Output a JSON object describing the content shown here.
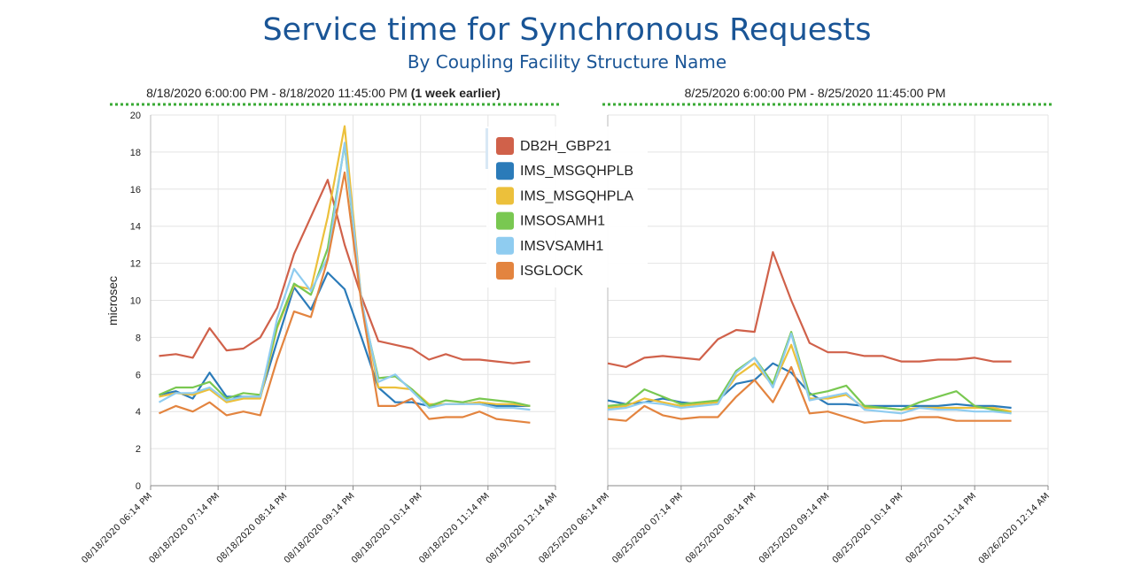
{
  "title": "Service time for Synchronous Requests",
  "subtitle": "By Coupling Facility Structure Name",
  "chart_data": {
    "type": "line",
    "ylabel": "microsec",
    "ylim": [
      0,
      20
    ],
    "yticks": [
      0,
      2,
      4,
      6,
      8,
      10,
      12,
      14,
      16,
      18,
      20
    ],
    "grid": true,
    "legend_placement": "top-center",
    "series_styles": [
      {
        "name": "DB2H_GBP21",
        "color": "#d0614a"
      },
      {
        "name": "IMS_MSGQHPLB",
        "color": "#2b7bb9"
      },
      {
        "name": "IMS_MSGQHPLA",
        "color": "#ecc03b"
      },
      {
        "name": "IMSOSAMH1",
        "color": "#79c851"
      },
      {
        "name": "IMSVSAMH1",
        "color": "#8fccf0"
      },
      {
        "name": "ISGLOCK",
        "color": "#e3843f"
      }
    ],
    "panels": [
      {
        "header": "8/18/2020 6:00:00 PM - 8/18/2020 11:45:00 PM",
        "header_suffix": "(1 week earlier)",
        "xticks": [
          "08/18/2020 06:14 PM",
          "08/18/2020 07:14 PM",
          "08/18/2020 08:14 PM",
          "08/18/2020 09:14 PM",
          "08/18/2020 10:14 PM",
          "08/18/2020 11:14 PM",
          "08/19/2020 12:14 AM"
        ],
        "series": [
          {
            "name": "DB2H_GBP21",
            "values": [
              7.0,
              7.1,
              6.9,
              8.5,
              7.3,
              7.4,
              8.0,
              9.6,
              12.5,
              14.5,
              16.5,
              13.0,
              10.2,
              7.8,
              7.6,
              7.4,
              6.8,
              7.1,
              6.8,
              6.8,
              6.7,
              6.6,
              6.7
            ]
          },
          {
            "name": "IMS_MSGQHPLB",
            "values": [
              4.9,
              5.1,
              4.7,
              6.1,
              4.8,
              4.8,
              4.8,
              7.8,
              10.7,
              9.5,
              11.5,
              10.6,
              8.0,
              5.3,
              4.5,
              4.5,
              4.3,
              4.4,
              4.4,
              4.5,
              4.3,
              4.3,
              4.3
            ]
          },
          {
            "name": "IMS_MSGQHPLA",
            "values": [
              4.8,
              5.0,
              4.9,
              5.2,
              4.5,
              4.7,
              4.7,
              8.5,
              10.8,
              10.6,
              14.5,
              19.4,
              10.0,
              5.3,
              5.3,
              5.2,
              4.4,
              4.4,
              4.4,
              4.5,
              4.4,
              4.4,
              4.3
            ]
          },
          {
            "name": "IMSOSAMH1",
            "values": [
              4.9,
              5.3,
              5.3,
              5.6,
              4.7,
              5.0,
              4.9,
              8.6,
              10.9,
              10.3,
              12.8,
              18.4,
              9.8,
              5.8,
              5.9,
              5.2,
              4.3,
              4.6,
              4.5,
              4.7,
              4.6,
              4.5,
              4.3
            ]
          },
          {
            "name": "IMSVSAMH1",
            "values": [
              4.5,
              5.0,
              5.0,
              5.3,
              4.6,
              4.8,
              4.8,
              9.0,
              11.7,
              10.5,
              12.3,
              18.5,
              10.0,
              5.6,
              6.0,
              5.1,
              4.2,
              4.4,
              4.4,
              4.4,
              4.2,
              4.2,
              4.1
            ]
          },
          {
            "name": "ISGLOCK",
            "values": [
              3.9,
              4.3,
              4.0,
              4.5,
              3.8,
              4.0,
              3.8,
              6.8,
              9.4,
              9.1,
              12.2,
              16.9,
              9.8,
              4.3,
              4.3,
              4.7,
              3.6,
              3.7,
              3.7,
              4.0,
              3.6,
              3.5,
              3.4
            ]
          }
        ]
      },
      {
        "header": "8/25/2020 6:00:00 PM - 8/25/2020 11:45:00 PM",
        "header_suffix": "",
        "xticks": [
          "08/25/2020 06:14 PM",
          "08/25/2020 07:14 PM",
          "08/25/2020 08:14 PM",
          "08/25/2020 09:14 PM",
          "08/25/2020 10:14 PM",
          "08/25/2020 11:14 PM",
          "08/26/2020 12:14 AM"
        ],
        "series": [
          {
            "name": "DB2H_GBP21",
            "values": [
              6.6,
              6.4,
              6.9,
              7.0,
              6.9,
              6.8,
              7.9,
              8.4,
              8.3,
              12.6,
              10.0,
              7.7,
              7.2,
              7.2,
              7.0,
              7.0,
              6.7,
              6.7,
              6.8,
              6.8,
              6.9,
              6.7,
              6.7
            ]
          },
          {
            "name": "IMS_MSGQHPLB",
            "values": [
              4.6,
              4.4,
              4.5,
              4.7,
              4.5,
              4.4,
              4.6,
              5.5,
              5.7,
              6.6,
              6.1,
              5.0,
              4.4,
              4.4,
              4.3,
              4.3,
              4.3,
              4.3,
              4.3,
              4.4,
              4.3,
              4.3,
              4.2
            ]
          },
          {
            "name": "IMS_MSGQHPLA",
            "values": [
              4.2,
              4.3,
              4.7,
              4.5,
              4.3,
              4.4,
              4.5,
              5.9,
              6.6,
              5.4,
              7.6,
              4.7,
              4.7,
              4.9,
              4.2,
              4.2,
              4.1,
              4.2,
              4.2,
              4.2,
              4.2,
              4.2,
              4.0
            ]
          },
          {
            "name": "IMSOSAMH1",
            "values": [
              4.3,
              4.4,
              5.2,
              4.8,
              4.4,
              4.5,
              4.6,
              6.2,
              6.9,
              5.5,
              8.3,
              4.9,
              5.1,
              5.4,
              4.3,
              4.2,
              4.1,
              4.5,
              4.8,
              5.1,
              4.3,
              4.1,
              3.9
            ]
          },
          {
            "name": "IMSVSAMH1",
            "values": [
              4.1,
              4.2,
              4.5,
              4.4,
              4.2,
              4.3,
              4.4,
              6.1,
              6.9,
              5.3,
              8.2,
              4.6,
              4.8,
              5.0,
              4.1,
              4.0,
              3.9,
              4.2,
              4.1,
              4.1,
              4.0,
              4.0,
              3.9
            ]
          },
          {
            "name": "ISGLOCK",
            "values": [
              3.6,
              3.5,
              4.3,
              3.8,
              3.6,
              3.7,
              3.7,
              4.8,
              5.7,
              4.5,
              6.4,
              3.9,
              4.0,
              3.7,
              3.4,
              3.5,
              3.5,
              3.7,
              3.7,
              3.5,
              3.5,
              3.5,
              3.5
            ]
          }
        ]
      }
    ]
  }
}
